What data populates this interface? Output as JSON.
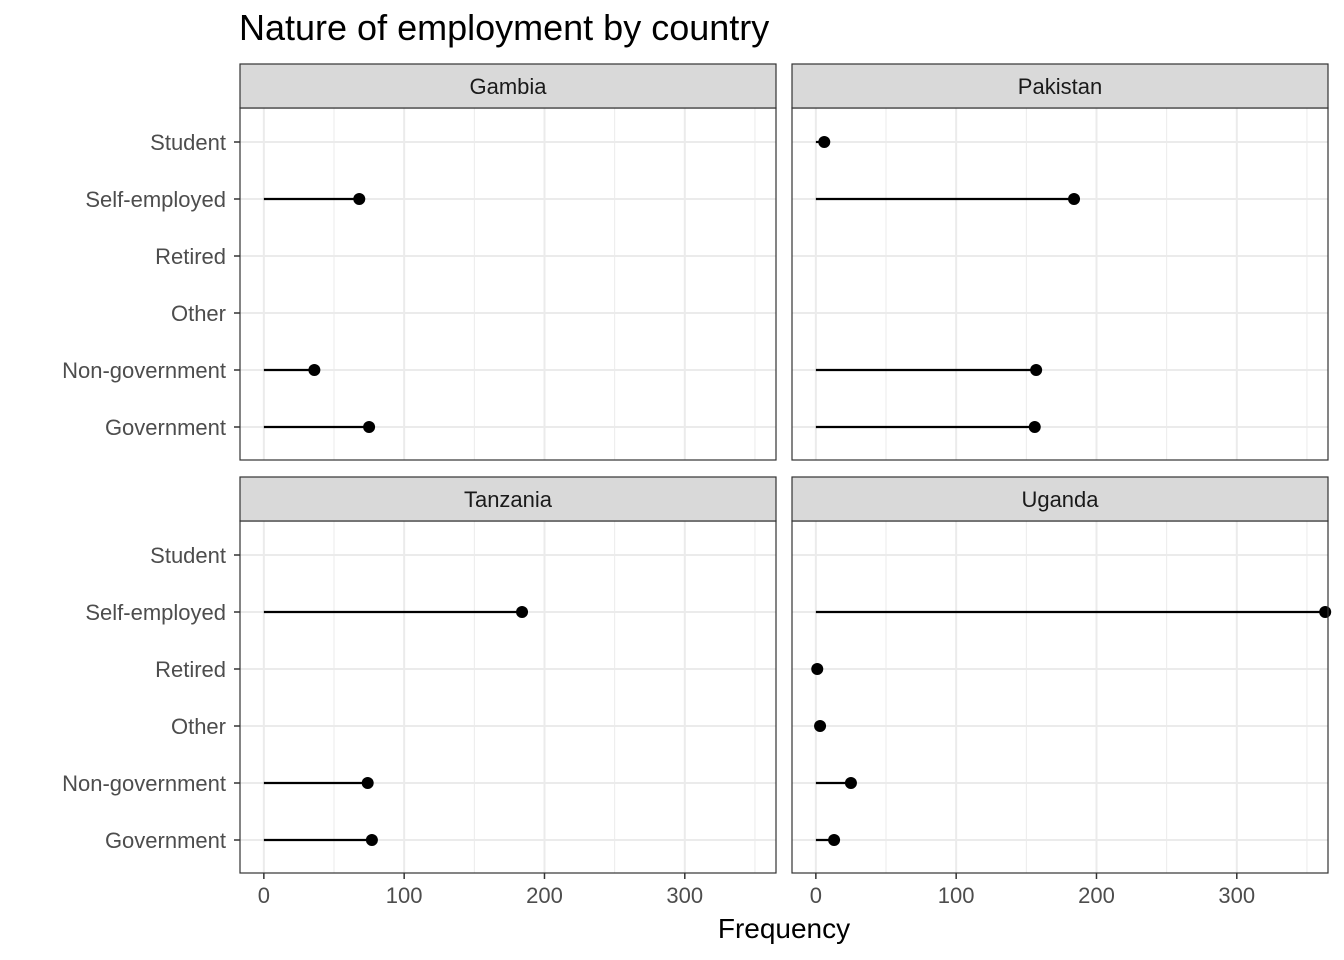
{
  "chart_data": {
    "type": "lollipop",
    "title": "Nature of employment by country",
    "xlabel": "Frequency",
    "ylabel": "",
    "xlim": [
      -17,
      365
    ],
    "x_ticks": [
      0,
      100,
      200,
      300
    ],
    "x_minor_ticks": [
      50,
      150,
      250,
      350
    ],
    "categories": [
      "Student",
      "Self-employed",
      "Retired",
      "Other",
      "Non-government",
      "Government"
    ],
    "grid": true,
    "facets": [
      {
        "name": "Gambia",
        "values": [
          null,
          68,
          null,
          null,
          36,
          75
        ]
      },
      {
        "name": "Pakistan",
        "values": [
          6,
          184,
          null,
          null,
          157,
          156
        ]
      },
      {
        "name": "Tanzania",
        "values": [
          null,
          184,
          null,
          null,
          74,
          77
        ]
      },
      {
        "name": "Uganda",
        "values": [
          null,
          363,
          1,
          3,
          25,
          13
        ]
      }
    ],
    "colors": {
      "point": "#000000",
      "segment": "#000000",
      "strip_fill": "#d9d9d9",
      "panel_border": "#333333",
      "grid_major": "#ebebeb"
    }
  }
}
